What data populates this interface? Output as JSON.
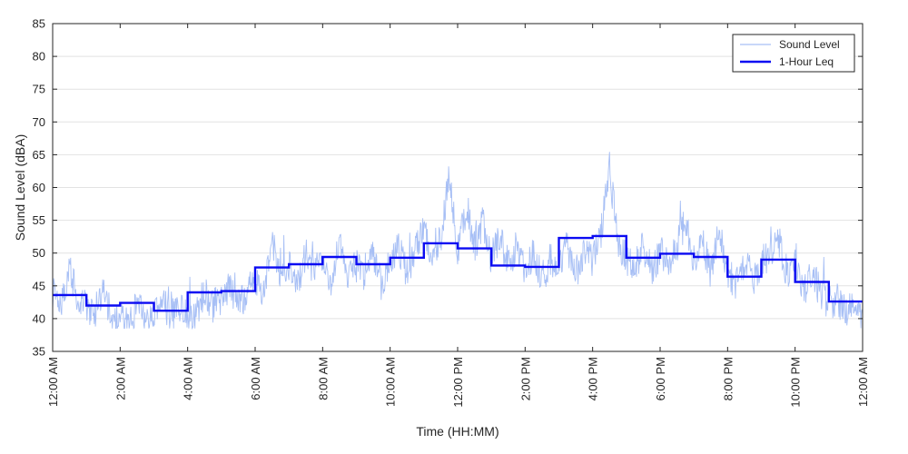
{
  "chart_data": {
    "type": "line",
    "title": "",
    "xlabel": "Time (HH:MM)",
    "ylabel": "Sound Level (dBA)",
    "xlim": [
      0,
      24
    ],
    "ylim": [
      35,
      85
    ],
    "y_ticks": [
      35,
      40,
      45,
      50,
      55,
      60,
      65,
      70,
      75,
      80,
      85
    ],
    "x_tick_hours": [
      0,
      2,
      4,
      6,
      8,
      10,
      12,
      14,
      16,
      18,
      20,
      22,
      24
    ],
    "x_tick_labels": [
      "12:00 AM",
      "2:00 AM",
      "4:00 AM",
      "6:00 AM",
      "8:00 AM",
      "10:00 AM",
      "12:00 PM",
      "2:00 PM",
      "4:00 PM",
      "6:00 PM",
      "8:00 PM",
      "10:00 PM",
      "12:00 AM"
    ],
    "grid": "horizontal",
    "legend_position": "top-right",
    "colors": {
      "sound_level": "#a7bff5",
      "leq": "#0b0bf2"
    },
    "series": [
      {
        "name": "Sound Level",
        "style": "thin-light-blue",
        "x": [
          0.0,
          0.25,
          0.5,
          0.75,
          1.0,
          1.25,
          1.5,
          1.75,
          2.0,
          2.25,
          2.5,
          2.75,
          3.0,
          3.25,
          3.5,
          3.75,
          4.0,
          4.25,
          4.5,
          4.75,
          5.0,
          5.25,
          5.5,
          5.75,
          6.0,
          6.25,
          6.5,
          6.75,
          7.0,
          7.25,
          7.5,
          7.75,
          8.0,
          8.25,
          8.5,
          8.75,
          9.0,
          9.25,
          9.5,
          9.75,
          10.0,
          10.25,
          10.5,
          10.75,
          11.0,
          11.25,
          11.5,
          11.75,
          12.0,
          12.25,
          12.5,
          12.75,
          13.0,
          13.25,
          13.5,
          13.75,
          14.0,
          14.25,
          14.5,
          14.75,
          15.0,
          15.25,
          15.5,
          15.75,
          16.0,
          16.25,
          16.5,
          16.75,
          17.0,
          17.25,
          17.5,
          17.75,
          18.0,
          18.25,
          18.5,
          18.75,
          19.0,
          19.25,
          19.5,
          19.75,
          20.0,
          20.25,
          20.5,
          20.75,
          21.0,
          21.25,
          21.5,
          21.75,
          22.0,
          22.25,
          22.5,
          22.75,
          23.0,
          23.25,
          23.5,
          23.75,
          24.0
        ],
        "y": [
          44,
          42,
          48,
          43,
          42,
          41,
          45,
          40,
          41,
          39,
          42,
          40,
          41,
          43,
          40,
          42,
          40,
          41,
          44,
          42,
          43,
          45,
          42,
          44,
          46,
          44,
          52,
          46,
          48,
          45,
          50,
          47,
          49,
          46,
          52,
          47,
          48,
          46,
          50,
          45,
          49,
          51,
          47,
          50,
          54,
          49,
          52,
          62,
          50,
          57,
          51,
          55,
          49,
          53,
          48,
          51,
          47,
          50,
          46,
          49,
          48,
          51,
          47,
          50,
          49,
          53,
          63,
          52,
          49,
          48,
          51,
          47,
          50,
          48,
          51,
          55,
          49,
          52,
          47,
          54,
          47,
          45,
          49,
          46,
          48,
          50,
          52,
          47,
          49,
          44,
          47,
          44,
          42,
          43,
          41,
          42,
          40
        ]
      },
      {
        "name": "1-Hour Leq",
        "style": "thick-blue-step",
        "hours": [
          0,
          1,
          2,
          3,
          4,
          5,
          6,
          7,
          8,
          9,
          10,
          11,
          12,
          13,
          14,
          15,
          16,
          17,
          18,
          19,
          20,
          21,
          22,
          23
        ],
        "values": [
          43.6,
          42.0,
          42.4,
          41.2,
          44.0,
          44.2,
          47.8,
          48.3,
          49.4,
          48.3,
          49.3,
          51.5,
          50.7,
          48.1,
          47.9,
          52.3,
          52.6,
          49.3,
          49.9,
          49.4,
          46.4,
          49.0,
          45.6,
          42.6
        ]
      }
    ]
  }
}
